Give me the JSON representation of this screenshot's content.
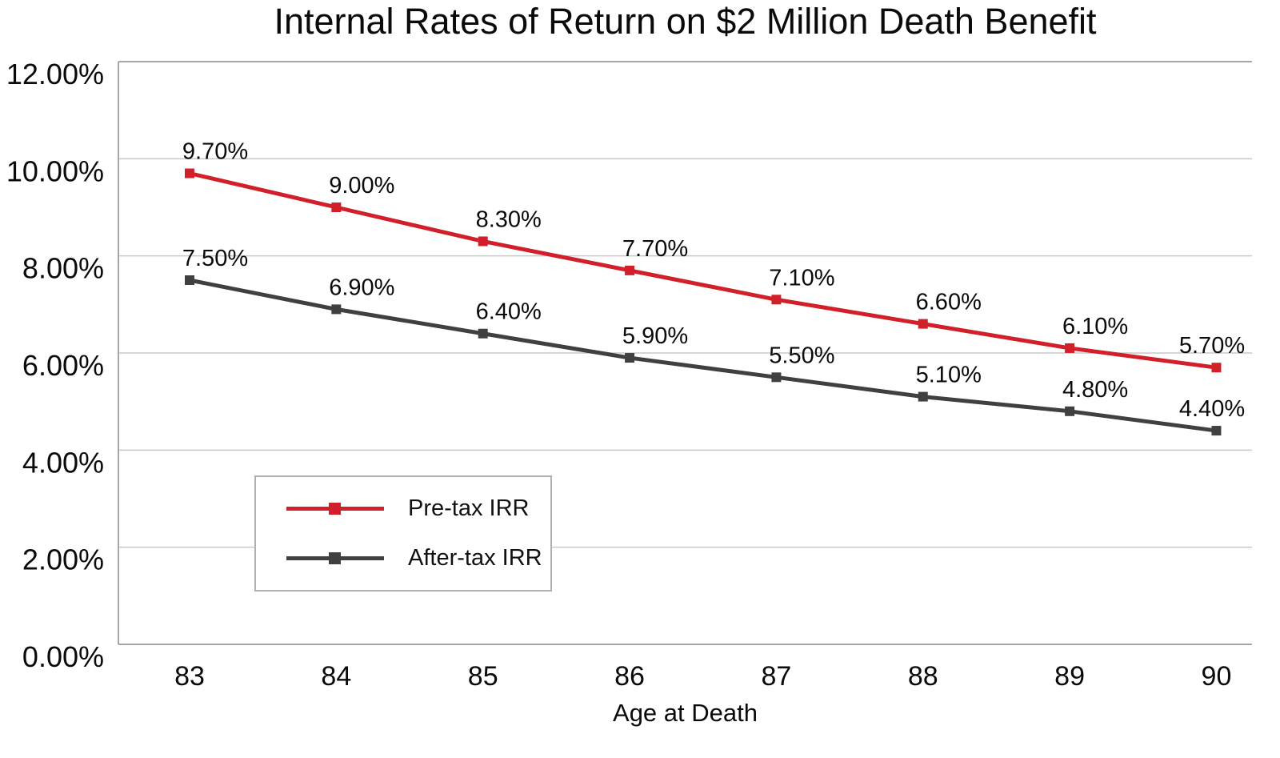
{
  "chart_data": {
    "type": "line",
    "title": "Internal Rates of Return on $2 Million Death Benefit",
    "xlabel": "Age at Death",
    "ylabel": "",
    "categories": [
      "83",
      "84",
      "85",
      "86",
      "87",
      "88",
      "89",
      "90"
    ],
    "series": [
      {
        "name": "Pre-tax IRR",
        "color": "#d1202a",
        "values": [
          9.7,
          9.0,
          8.3,
          7.7,
          7.1,
          6.6,
          6.1,
          5.7
        ],
        "labels": [
          "9.70%",
          "9.00%",
          "8.30%",
          "7.70%",
          "7.10%",
          "6.60%",
          "6.10%",
          "5.70%"
        ]
      },
      {
        "name": "After-tax IRR",
        "color": "#404040",
        "values": [
          7.5,
          6.9,
          6.4,
          5.9,
          5.5,
          5.1,
          4.8,
          4.4
        ],
        "labels": [
          "7.50%",
          "6.90%",
          "6.40%",
          "5.90%",
          "5.50%",
          "5.10%",
          "4.80%",
          "4.40%"
        ]
      }
    ],
    "ylim": [
      0,
      12
    ],
    "ytick_step": 2,
    "ytick_labels": [
      "0.00%",
      "2.00%",
      "4.00%",
      "6.00%",
      "8.00%",
      "10.00%",
      "12.00%"
    ],
    "grid": true,
    "legend_position": "inside-lower-left",
    "marker": "square"
  },
  "colors": {
    "grid": "#c9c9c9",
    "axis_border": "#a6a6a6",
    "text": "#0a0a0a",
    "background": "#ffffff"
  }
}
